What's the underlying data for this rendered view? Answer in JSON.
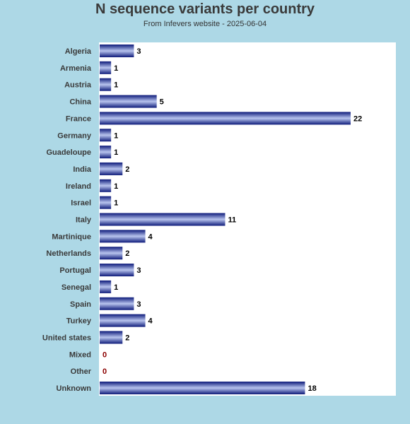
{
  "chart_data": {
    "type": "bar",
    "orientation": "horizontal",
    "title": "N sequence variants per country",
    "subtitle": "From Infevers website - 2025-06-04",
    "categories": [
      "Algeria",
      "Armenia",
      "Austria",
      "China",
      "France",
      "Germany",
      "Guadeloupe",
      "India",
      "Ireland",
      "Israel",
      "Italy",
      "Martinique",
      "Netherlands",
      "Portugal",
      "Senegal",
      "Spain",
      "Turkey",
      "United states",
      "Mixed",
      "Other",
      "Unknown"
    ],
    "values": [
      3,
      1,
      1,
      5,
      22,
      1,
      1,
      2,
      1,
      1,
      11,
      4,
      2,
      3,
      1,
      3,
      4,
      2,
      0,
      0,
      18
    ],
    "xlim": [
      0,
      22.4
    ],
    "grid": false,
    "colors": {
      "background": "#add8e6",
      "plot_background": "#ffffff",
      "bar_dark": "#0d1a7a",
      "bar_light": "#b8c4ee",
      "zero_label": "#8b0000"
    }
  }
}
